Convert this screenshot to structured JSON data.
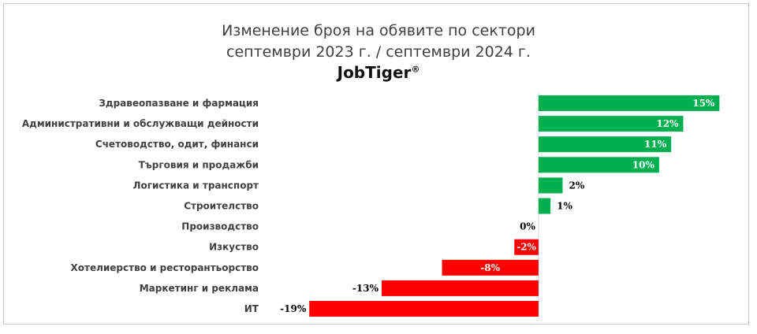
{
  "chart_data": {
    "type": "bar",
    "orientation": "horizontal",
    "title": "Изменение броя на обявите по сектори",
    "subtitle": "септември 2023 г. / септември 2024 г.",
    "brand": "JobTiger",
    "brand_mark": "®",
    "categories": [
      "Здравеопазване и фармация",
      "Административни и обслужващи дейности",
      "Счетоводство, одит, финанси",
      "Търговия и продажби",
      "Логистика и транспорт",
      "Строителство",
      "Производство",
      "Изкуство",
      "Хотелиерство и ресторантьорство",
      "Маркетинг и реклама",
      "ИТ"
    ],
    "values": [
      15,
      12,
      11,
      10,
      2,
      1,
      0,
      -2,
      -8,
      -13,
      -19
    ],
    "value_labels": [
      "15%",
      "12%",
      "11%",
      "10%",
      "2%",
      "1%",
      "0%",
      "-2%",
      "-8%",
      "-13%",
      "-19%"
    ],
    "colors": {
      "positive": "#00b050",
      "negative": "#ff0000"
    },
    "xlim": [
      -19.8,
      15.5
    ],
    "grid": false,
    "legend": "none"
  }
}
